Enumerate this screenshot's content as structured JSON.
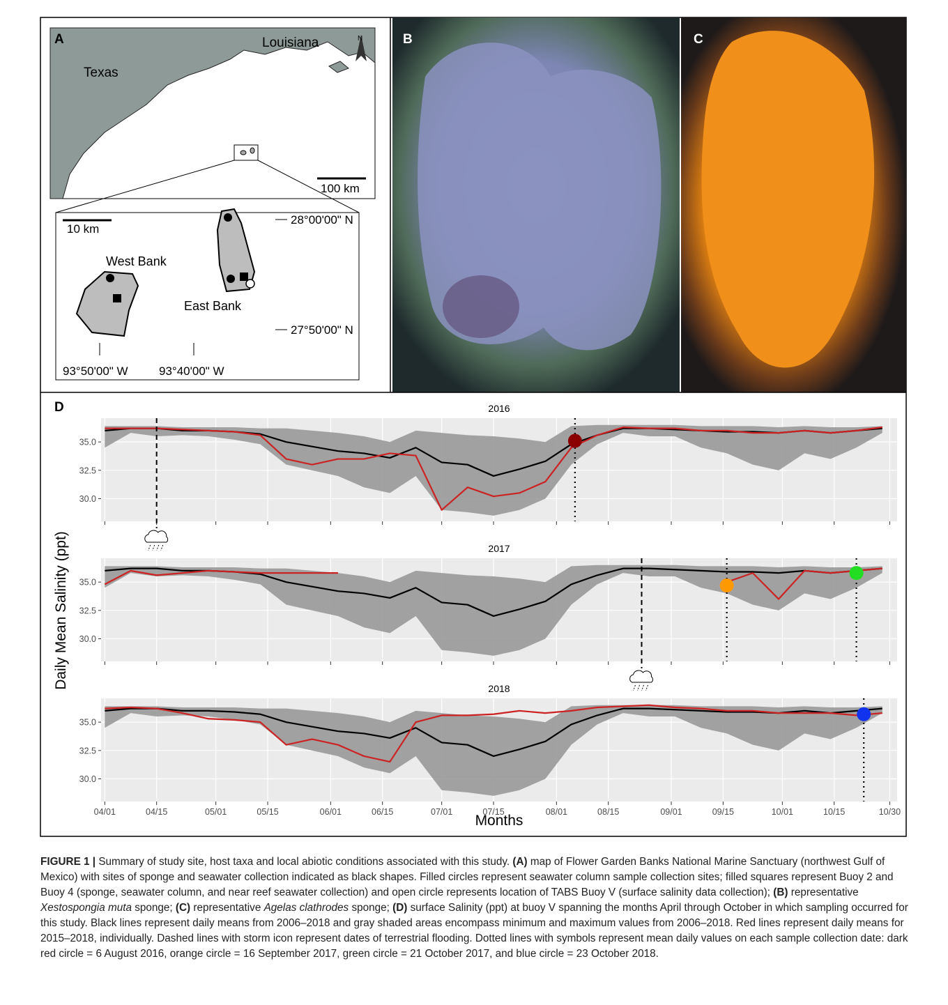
{
  "panel_a": {
    "label": "A",
    "texas": "Texas",
    "louisiana": "Louisiana",
    "north": "N",
    "scale_large": "100 km",
    "scale_small": "10 km",
    "west_bank": "West Bank",
    "east_bank": "East Bank",
    "lat_north": "28°00'00\" N",
    "lat_south": "27°50'00\" N",
    "lon_west": "93°50'00\" W",
    "lon_east": "93°40'00\" W"
  },
  "panel_b": {
    "label": "B"
  },
  "panel_c": {
    "label": "C"
  },
  "panel_d": {
    "label": "D",
    "ylabel": "Daily Mean Salinity (ppt)",
    "xlabel": "Months"
  },
  "chart_data": [
    {
      "type": "line",
      "title": "2016",
      "x": [
        0,
        7,
        14,
        21,
        28,
        35,
        42,
        49,
        56,
        63,
        70,
        77,
        84,
        91,
        98,
        105,
        112,
        119,
        126,
        133,
        140,
        147,
        154,
        161,
        168,
        175,
        182,
        189,
        196,
        203,
        210
      ],
      "xlim": [
        -1,
        214
      ],
      "xticks": [
        0,
        14,
        30,
        44,
        61,
        75,
        91,
        105,
        122,
        136,
        153,
        167,
        183,
        197,
        212
      ],
      "ylim": [
        28,
        37.1
      ],
      "yticks": [
        {
          "value": 30,
          "label": "30.0"
        },
        32.5,
        {
          "value": 35,
          "label": "35.0"
        }
      ],
      "grid": true,
      "band": {
        "color": "#999999",
        "lower": [
          34.5,
          35.8,
          35.5,
          35.6,
          35.5,
          35.2,
          34.8,
          33.0,
          32.5,
          32.0,
          31.0,
          30.5,
          32.0,
          29.0,
          28.8,
          28.5,
          29.0,
          30.0,
          33.0,
          34.8,
          35.8,
          35.5,
          35.5,
          34.5,
          34.0,
          33.0,
          32.5,
          34.0,
          33.5,
          34.5,
          35.8
        ],
        "upper": [
          36.4,
          36.4,
          36.4,
          36.3,
          36.3,
          36.3,
          36.2,
          36.2,
          36.0,
          35.8,
          35.5,
          35.0,
          36.0,
          35.8,
          35.6,
          35.5,
          35.3,
          35.0,
          36.4,
          36.5,
          36.5,
          36.5,
          36.5,
          36.4,
          36.4,
          36.4,
          36.3,
          36.4,
          36.3,
          36.3,
          36.4
        ]
      },
      "series": [
        {
          "color": "#000000",
          "values": [
            36.0,
            36.2,
            36.2,
            36.0,
            36.0,
            35.9,
            35.7,
            35.0,
            34.6,
            34.2,
            34.0,
            33.6,
            34.5,
            33.2,
            33.0,
            32.0,
            32.6,
            33.3,
            34.8,
            35.6,
            36.2,
            36.2,
            36.1,
            36.0,
            35.9,
            35.9,
            35.8,
            36.0,
            35.8,
            36.0,
            36.2
          ]
        },
        {
          "color": "#cc2222",
          "values": [
            36.2,
            36.2,
            36.2,
            36.1,
            36.0,
            35.9,
            35.6,
            33.5,
            33.0,
            33.5,
            33.5,
            34.0,
            33.8,
            29.0,
            31.0,
            30.2,
            30.5,
            31.5,
            34.5,
            35.6,
            36.3,
            36.2,
            36.2,
            36.0,
            36.0,
            35.8,
            35.8,
            36.0,
            35.8,
            36.0,
            36.3
          ]
        }
      ],
      "markers": [
        {
          "x": 127,
          "y": 35.1,
          "color": "#8b0000"
        }
      ],
      "flood_x": [
        14
      ]
    },
    {
      "type": "line",
      "title": "2017",
      "x": [
        0,
        7,
        14,
        21,
        28,
        35,
        42,
        49,
        56,
        63,
        70,
        77,
        84,
        91,
        98,
        105,
        112,
        119,
        126,
        133,
        140,
        147,
        154,
        161,
        168,
        175,
        182,
        189,
        196,
        203,
        210
      ],
      "xlim": [
        -1,
        214
      ],
      "xticks": [
        0,
        14,
        30,
        44,
        61,
        75,
        91,
        105,
        122,
        136,
        153,
        167,
        183,
        197,
        212
      ],
      "ylim": [
        28,
        37.1
      ],
      "yticks": [
        {
          "value": 30,
          "label": "30.0"
        },
        32.5,
        {
          "value": 35,
          "label": "35.0"
        }
      ],
      "grid": true,
      "band": {
        "color": "#999999",
        "lower": [
          34.5,
          35.8,
          35.5,
          35.6,
          35.5,
          35.2,
          34.8,
          33.0,
          32.5,
          32.0,
          31.0,
          30.5,
          32.0,
          29.0,
          28.8,
          28.5,
          29.0,
          30.0,
          33.0,
          34.8,
          35.8,
          35.5,
          35.5,
          34.5,
          34.0,
          33.0,
          32.5,
          34.0,
          33.5,
          34.5,
          35.8
        ],
        "upper": [
          36.4,
          36.4,
          36.4,
          36.3,
          36.3,
          36.3,
          36.2,
          36.2,
          36.0,
          35.8,
          35.5,
          35.0,
          36.0,
          35.8,
          35.6,
          35.5,
          35.3,
          35.0,
          36.4,
          36.5,
          36.5,
          36.5,
          36.5,
          36.4,
          36.4,
          36.4,
          36.3,
          36.4,
          36.3,
          36.3,
          36.4
        ]
      },
      "series": [
        {
          "color": "#000000",
          "values": [
            36.0,
            36.2,
            36.2,
            36.0,
            36.0,
            35.9,
            35.7,
            35.0,
            34.6,
            34.2,
            34.0,
            33.6,
            34.5,
            33.2,
            33.0,
            32.0,
            32.6,
            33.3,
            34.8,
            35.6,
            36.2,
            36.2,
            36.1,
            36.0,
            35.9,
            35.9,
            35.8,
            36.0,
            35.8,
            36.0,
            36.2
          ]
        },
        {
          "color": "#cc2222",
          "values": [
            34.8,
            36.0,
            35.6,
            35.8,
            36.0,
            35.9,
            35.8,
            35.8,
            35.8,
            35.8,
            null,
            null,
            null,
            null,
            null,
            null,
            null,
            null,
            null,
            null,
            null,
            null,
            null,
            null,
            35.0,
            35.8,
            33.5,
            36.0,
            35.8,
            36.0,
            36.2
          ]
        }
      ],
      "markers": [
        {
          "x": 168,
          "y": 34.7,
          "color": "#ff9900"
        },
        {
          "x": 203,
          "y": 35.8,
          "color": "#22dd22"
        }
      ],
      "flood_x": [
        145
      ]
    },
    {
      "type": "line",
      "title": "2018",
      "x": [
        0,
        7,
        14,
        21,
        28,
        35,
        42,
        49,
        56,
        63,
        70,
        77,
        84,
        91,
        98,
        105,
        112,
        119,
        126,
        133,
        140,
        147,
        154,
        161,
        168,
        175,
        182,
        189,
        196,
        203,
        210
      ],
      "xlim": [
        -1,
        214
      ],
      "xticks": [
        {
          "value": 0,
          "label": "04/01"
        },
        {
          "value": 14,
          "label": "04/15"
        },
        {
          "value": 30,
          "label": "05/01"
        },
        {
          "value": 44,
          "label": "05/15"
        },
        {
          "value": 61,
          "label": "06/01"
        },
        {
          "value": 75,
          "label": "06/15"
        },
        {
          "value": 91,
          "label": "07/01"
        },
        {
          "value": 105,
          "label": "07/15"
        },
        {
          "value": 122,
          "label": "08/01"
        },
        {
          "value": 136,
          "label": "08/15"
        },
        {
          "value": 153,
          "label": "09/01"
        },
        {
          "value": 167,
          "label": "09/15"
        },
        {
          "value": 183,
          "label": "10/01"
        },
        {
          "value": 197,
          "label": "10/15"
        },
        {
          "value": 212,
          "label": "10/30"
        }
      ],
      "ylim": [
        28,
        37.1
      ],
      "yticks": [
        {
          "value": 30,
          "label": "30.0"
        },
        32.5,
        {
          "value": 35,
          "label": "35.0"
        }
      ],
      "grid": true,
      "band": {
        "color": "#999999",
        "lower": [
          34.5,
          35.8,
          35.5,
          35.6,
          35.5,
          35.2,
          34.8,
          33.0,
          32.5,
          32.0,
          31.0,
          30.5,
          32.0,
          29.0,
          28.8,
          28.5,
          29.0,
          30.0,
          33.0,
          34.8,
          35.8,
          35.5,
          35.5,
          34.5,
          34.0,
          33.0,
          32.5,
          34.0,
          33.5,
          34.5,
          35.8
        ],
        "upper": [
          36.4,
          36.4,
          36.4,
          36.3,
          36.3,
          36.3,
          36.2,
          36.2,
          36.0,
          35.8,
          35.5,
          35.0,
          36.0,
          35.8,
          35.6,
          35.5,
          35.3,
          35.0,
          36.4,
          36.5,
          36.5,
          36.5,
          36.5,
          36.4,
          36.4,
          36.4,
          36.3,
          36.4,
          36.3,
          36.3,
          36.4
        ]
      },
      "series": [
        {
          "color": "#000000",
          "values": [
            36.0,
            36.2,
            36.2,
            36.0,
            36.0,
            35.9,
            35.7,
            35.0,
            34.6,
            34.2,
            34.0,
            33.6,
            34.5,
            33.2,
            33.0,
            32.0,
            32.6,
            33.3,
            34.8,
            35.6,
            36.2,
            36.2,
            36.1,
            36.0,
            35.9,
            35.9,
            35.8,
            36.0,
            35.8,
            36.0,
            36.2
          ]
        },
        {
          "color": "#cc2222",
          "values": [
            36.2,
            36.3,
            36.2,
            35.8,
            35.3,
            35.2,
            35.0,
            33.0,
            33.5,
            33.0,
            32.0,
            31.5,
            35.0,
            35.6,
            35.6,
            35.7,
            36.0,
            35.8,
            36.0,
            36.3,
            36.4,
            36.5,
            36.3,
            36.2,
            36.0,
            36.0,
            35.8,
            35.8,
            35.8,
            35.6,
            35.8
          ]
        }
      ],
      "markers": [
        {
          "x": 205,
          "y": 35.7,
          "color": "#1133ee"
        }
      ],
      "flood_x": []
    }
  ],
  "caption": [
    {
      "text": "FIGURE 1 |",
      "bold": true
    },
    {
      "text": " Summary of study site, host taxa and local abiotic conditions associated with this study. "
    },
    {
      "text": "(A)",
      "bold": true
    },
    {
      "text": " map of Flower Garden Banks National Marine Sanctuary (northwest Gulf of Mexico) with sites of sponge and seawater collection indicated as black shapes. Filled circles represent seawater column sample collection sites; filled squares represent Buoy 2 and Buoy 4 (sponge, seawater column, and near reef seawater collection) and open circle represents location of TABS Buoy V (surface salinity data collection); "
    },
    {
      "text": "(B)",
      "bold": true
    },
    {
      "text": " representative "
    },
    {
      "text": "Xestospongia muta",
      "italic": true
    },
    {
      "text": " sponge; "
    },
    {
      "text": "(C)",
      "bold": true
    },
    {
      "text": " representative "
    },
    {
      "text": "Agelas clathrodes",
      "italic": true
    },
    {
      "text": " sponge; "
    },
    {
      "text": "(D)",
      "bold": true
    },
    {
      "text": " surface Salinity (ppt) at buoy V spanning the months April through October in which sampling occurred for this study. Black lines represent daily means from 2006–2018 and gray shaded areas encompass minimum and maximum values from 2006–2018. Red lines represent daily means for 2015–2018, individually. Dashed lines with storm icon represent dates of terrestrial flooding. Dotted lines with symbols represent mean daily values on each sample collection date: dark red circle = 6 August 2016, orange circle = 16 September 2017, green circle = 21 October 2017, and blue circle = 23 October 2018."
    }
  ]
}
